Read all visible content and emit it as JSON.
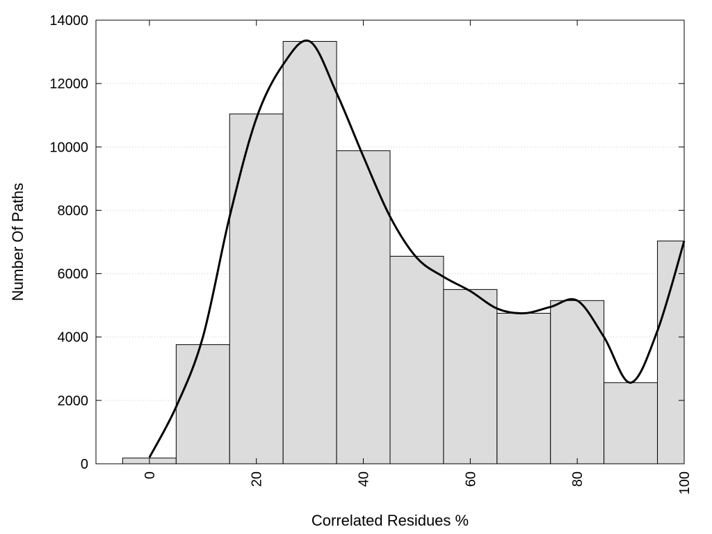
{
  "chart_data": {
    "type": "bar",
    "xlabel": "Correlated Residues %",
    "ylabel": "Number Of Paths",
    "xlim": [
      -10,
      100
    ],
    "ylim": [
      0,
      14000
    ],
    "bin_width": 10,
    "bar_color": "#dcdcdc",
    "line_color": "#000000",
    "grid": "horizontal dotted",
    "x_ticks": [
      0,
      20,
      40,
      60,
      80,
      100
    ],
    "y_ticks": [
      0,
      2000,
      4000,
      6000,
      8000,
      10000,
      12000,
      14000
    ],
    "bins": [
      0,
      10,
      20,
      30,
      40,
      50,
      60,
      70,
      80,
      90,
      100
    ],
    "values": [
      180,
      3760,
      11040,
      13330,
      9880,
      6550,
      5500,
      4750,
      5150,
      2560,
      7030
    ],
    "smooth_curve": {
      "x": [
        0,
        5,
        10,
        15,
        20,
        25,
        30,
        35,
        40,
        45,
        50,
        55,
        60,
        65,
        70,
        75,
        80,
        85,
        90,
        95,
        100
      ],
      "y": [
        200,
        1800,
        4000,
        7800,
        10900,
        12600,
        13330,
        11700,
        9700,
        7800,
        6500,
        5900,
        5450,
        4900,
        4750,
        4950,
        5150,
        4000,
        2560,
        4200,
        7030
      ]
    }
  }
}
